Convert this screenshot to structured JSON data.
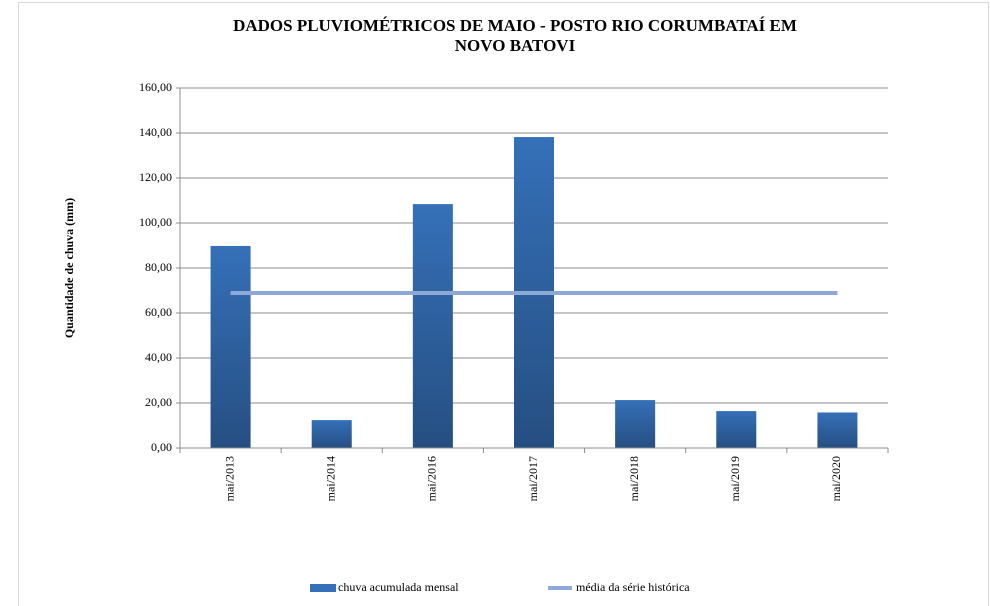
{
  "chart_data": {
    "type": "bar",
    "title": [
      "DADOS PLUVIOMÉTRICOS DE MAIO - POSTO RIO CORUMBATAÍ EM",
      "NOVO BATOVI"
    ],
    "y_label": "Quantidade de chuva (mm)",
    "categories": [
      "mai/2013",
      "mai/2014",
      "mai/2016",
      "mai/2017",
      "mai/2018",
      "mai/2019",
      "mai/2020"
    ],
    "series": [
      {
        "name": "chuva acumulada mensal",
        "type": "bar",
        "color": "#3570b8",
        "values": [
          89.8,
          12.4,
          108.4,
          138.2,
          21.3,
          16.4,
          15.8
        ]
      },
      {
        "name": "média da série histórica",
        "type": "line",
        "color": "#8ea9d8",
        "values": [
          68.9,
          68.9,
          68.9,
          68.9,
          68.9,
          68.9,
          68.9
        ]
      }
    ],
    "ylim": [
      0,
      160
    ],
    "yticks": [
      {
        "value": 0,
        "label": "0,00"
      },
      {
        "value": 20,
        "label": "20,00"
      },
      {
        "value": 40,
        "label": "40,00"
      },
      {
        "value": 60,
        "label": "60,00"
      },
      {
        "value": 80,
        "label": "80,00"
      },
      {
        "value": 100,
        "label": "100,00"
      },
      {
        "value": 120,
        "label": "120,00"
      },
      {
        "value": 140,
        "label": "140,00"
      },
      {
        "value": 160,
        "label": "160,00"
      }
    ],
    "grid": true,
    "legend": "bottom"
  }
}
